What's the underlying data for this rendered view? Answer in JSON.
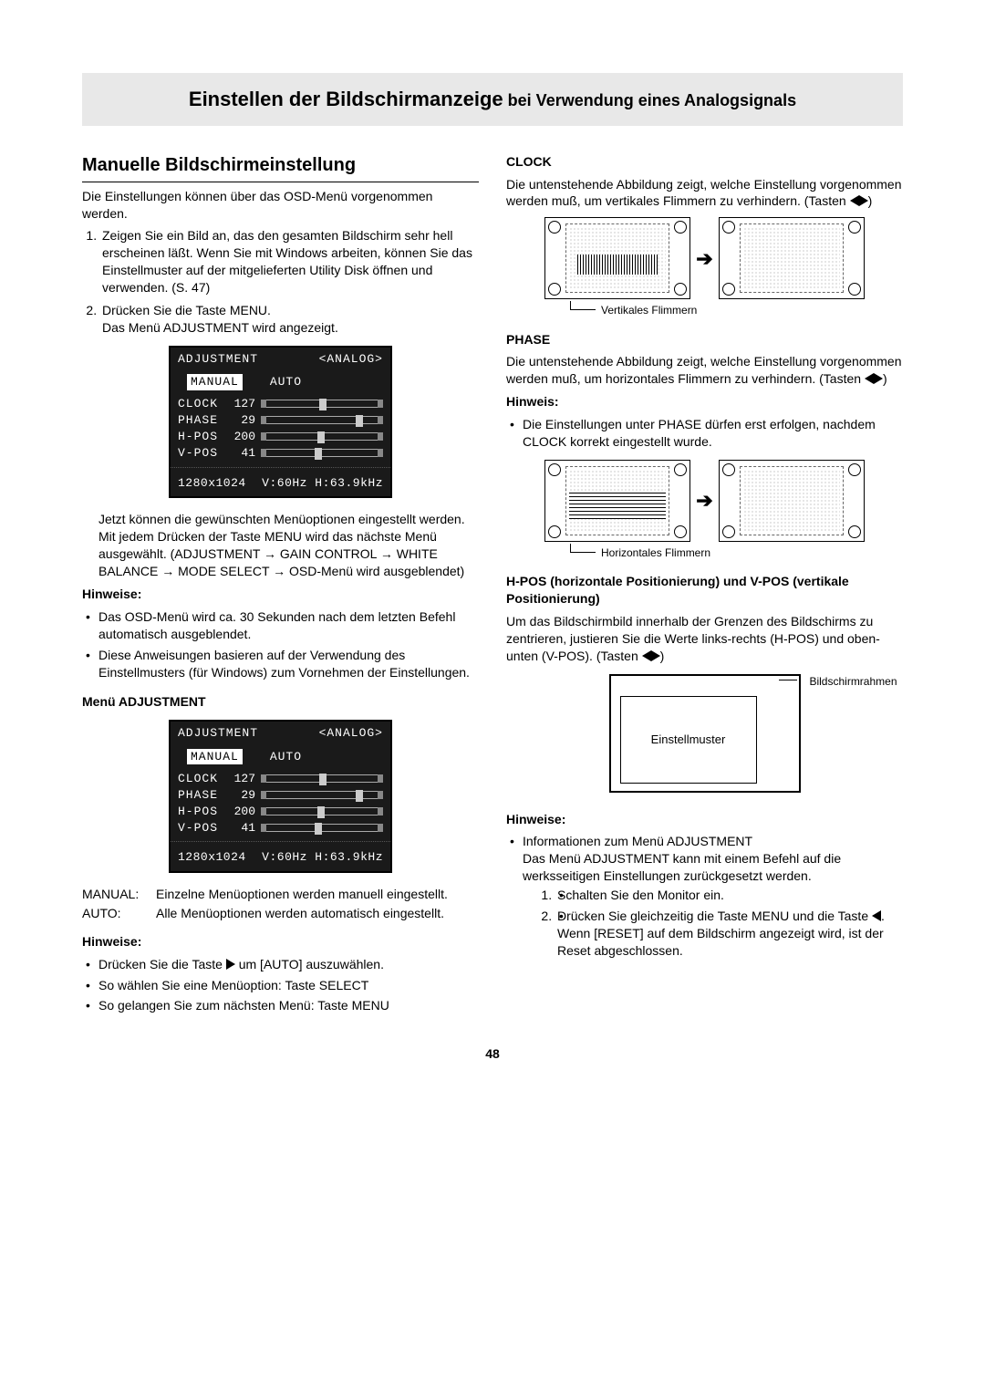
{
  "title_main": "Einstellen der Bildschirmanzeige",
  "title_sub": " bei Verwendung eines Analogsignals",
  "left": {
    "h2": "Manuelle Bildschirmeinstellung",
    "intro": "Die Einstellungen können über das OSD-Menü vorgenommen werden.",
    "steps": [
      "Zeigen Sie ein Bild an, das den gesamten Bildschirm sehr hell erscheinen läßt. Wenn Sie mit Windows arbeiten, können Sie das Einstellmuster auf der mitgelieferten Utility Disk öffnen und verwenden. (S. 47)",
      "Drücken Sie die Taste MENU.\nDas Menü ADJUSTMENT wird angezeigt."
    ],
    "after_osd": "Jetzt können die gewünschten Menüoptionen eingestellt werden. Mit jedem Drücken der Taste MENU wird das nächste Menü ausgewählt. (ADJUSTMENT → GAIN CONTROL → WHITE BALANCE → MODE SELECT → OSD-Menü wird ausgeblendet)",
    "hinweise1_label": "Hinweise:",
    "hinweise1": [
      "Das OSD-Menü wird ca. 30 Sekunden nach dem letzten Befehl automatisch ausgeblendet.",
      "Diese Anweisungen basieren auf der Verwendung des Einstellmusters (für Windows) zum Vornehmen der Einstellungen."
    ],
    "menu_adj_label": "Menü ADJUSTMENT",
    "manual_label": "MANUAL:",
    "manual_text": "Einzelne Menüoptionen werden manuell eingestellt.",
    "auto_label": "AUTO:",
    "auto_text": "Alle Menüoptionen werden automatisch eingestellt.",
    "hinweise2_label": "Hinweise:",
    "hinweise2_a": "Drücken Sie die Taste ",
    "hinweise2_a2": " um [AUTO] auszuwählen.",
    "hinweise2_b": "So wählen Sie eine Menüoption:          Taste SELECT",
    "hinweise2_c": "So gelangen Sie zum nächsten Menü: Taste MENU"
  },
  "osd": {
    "title": "ADJUSTMENT",
    "mode": "<ANALOG>",
    "tab_active": "MANUAL",
    "tab_other": "AUTO",
    "rows": [
      {
        "label": "CLOCK",
        "val": "127",
        "pos": 48
      },
      {
        "label": "PHASE",
        "val": "29",
        "pos": 78
      },
      {
        "label": "H-POS",
        "val": "200",
        "pos": 46
      },
      {
        "label": "V-POS",
        "val": "41",
        "pos": 44
      }
    ],
    "res": "1280x1024",
    "freq": "V:60Hz H:63.9kHz"
  },
  "right": {
    "clock_label": "CLOCK",
    "clock_text": "Die untenstehende Abbildung zeigt, welche Einstellung vorgenommen werden muß, um vertikales Flimmern zu verhindern. (Tasten ",
    "clock_caption": "Vertikales Flimmern",
    "phase_label": "PHASE",
    "phase_text": "Die untenstehende Abbildung zeigt, welche Einstellung vorgenommen werden muß, um horizontales Flimmern zu verhindern. (Tasten ",
    "hinweis_label": "Hinweis:",
    "phase_hinweis": "Die Einstellungen unter PHASE dürfen erst erfolgen, nachdem CLOCK korrekt eingestellt wurde.",
    "phase_caption": "Horizontales Flimmern",
    "hpos_label": "H-POS (horizontale Positionierung) und V-POS (vertikale Positionierung)",
    "hpos_text": "Um das Bildschirmbild innerhalb der Grenzen des Bildschirms zu zentrieren, justieren Sie die Werte links-rechts (H-POS) und oben-unten (V-POS). (Tasten ",
    "frame_label": "Bildschirmrahmen",
    "pattern_label": "Einstellmuster",
    "hinweise3_label": "Hinweise:",
    "hinweise3_head": "Informationen zum Menü ADJUSTMENT",
    "hinweise3_body": "Das Menü ADJUSTMENT kann mit einem Befehl auf die werksseitigen Einstellungen zurückgesetzt werden.",
    "hinweise3_steps_1": "Schalten Sie den Monitor ein.",
    "hinweise3_steps_2a": "Drücken Sie gleichzeitig die Taste MENU und die Taste ",
    "hinweise3_steps_2b": ".",
    "hinweise3_tail": "Wenn [RESET] auf dem Bildschirm angezeigt wird, ist der Reset abgeschlossen."
  },
  "page": "48"
}
